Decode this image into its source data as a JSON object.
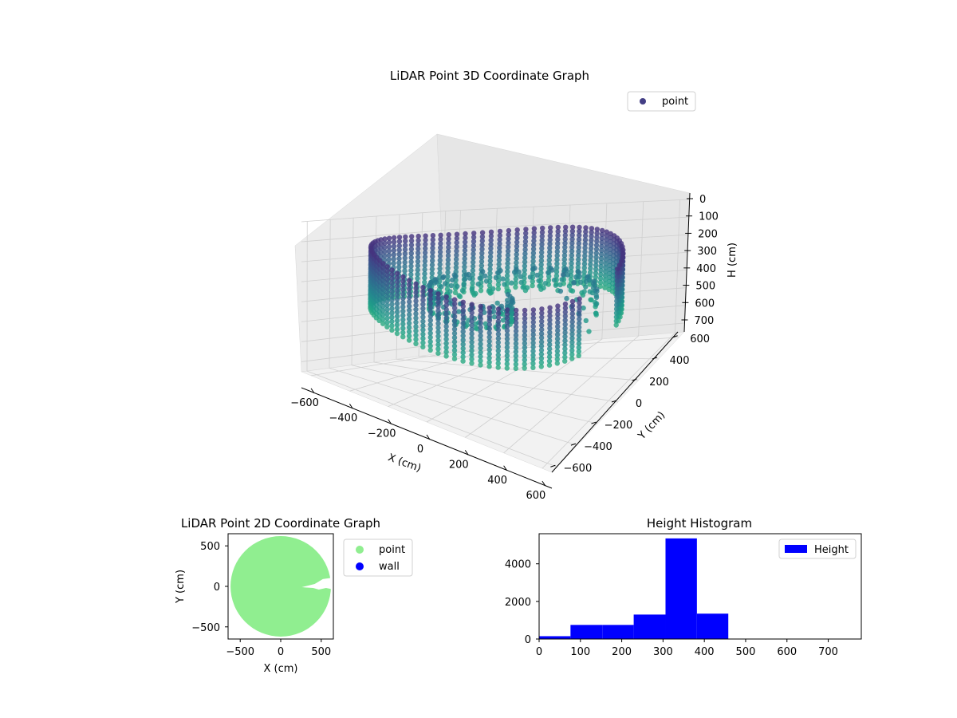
{
  "chart_data": [
    {
      "type": "scatter",
      "projection": "3d",
      "title": "LiDAR Point 3D Coordinate Graph",
      "xlabel": "X (cm)",
      "ylabel": "Y (cm)",
      "zlabel": "H (cm)",
      "xlim": [
        -650,
        650
      ],
      "ylim": [
        -650,
        650
      ],
      "zlim": [
        0,
        750
      ],
      "z_inverted": true,
      "xticks": [
        -600,
        -400,
        -200,
        0,
        200,
        400,
        600
      ],
      "yticks": [
        -600,
        -400,
        -200,
        0,
        200,
        400,
        600
      ],
      "zticks": [
        0,
        100,
        200,
        300,
        400,
        500,
        600,
        700
      ],
      "colormap": "viridis",
      "legend": {
        "placement": "top-right",
        "entries": [
          {
            "label": "point",
            "color": "#433e85"
          }
        ]
      },
      "series": [
        {
          "name": "point",
          "description_of_shape": "ring wall of radius ~580 cm spanning heights ~100-420 cm, opening toward +X",
          "wall_radius": 580,
          "wall_h_min": 100,
          "wall_h_max": 420,
          "inner_cluster": [
            [
              250,
              150,
              280
            ],
            [
              300,
              120,
              300
            ],
            [
              350,
              80,
              320
            ],
            [
              400,
              60,
              340
            ],
            [
              280,
              220,
              260
            ],
            [
              200,
              260,
              240
            ],
            [
              450,
              40,
              360
            ],
            [
              500,
              -20,
              380
            ],
            [
              320,
              180,
              330
            ],
            [
              380,
              140,
              350
            ]
          ]
        }
      ]
    },
    {
      "type": "scatter",
      "title": "LiDAR Point 2D Coordinate Graph",
      "xlabel": "X (cm)",
      "ylabel": "Y (cm)",
      "xlim": [
        -650,
        650
      ],
      "ylim": [
        -650,
        650
      ],
      "xticks": [
        -500,
        0,
        500
      ],
      "yticks": [
        -500,
        0,
        500
      ],
      "legend": {
        "placement": "outside-right",
        "entries": [
          {
            "label": "point",
            "color": "#90ee90"
          },
          {
            "label": "wall",
            "color": "#0000ff"
          }
        ]
      },
      "series": [
        {
          "name": "point",
          "color": "#90ee90",
          "shape": "filled disc of radius ~620 cm with a notch near (300..650, -20..80)"
        },
        {
          "name": "wall",
          "color": "#0000ff",
          "values": []
        }
      ]
    },
    {
      "type": "bar",
      "subtype": "histogram",
      "title": "Height Histogram",
      "xlim": [
        0,
        780
      ],
      "ylim": [
        0,
        5600
      ],
      "xticks": [
        0,
        100,
        200,
        300,
        400,
        500,
        600,
        700
      ],
      "yticks": [
        0,
        2000,
        4000
      ],
      "color": "#0000ff",
      "legend": {
        "placement": "top-right",
        "entries": [
          {
            "label": "Height",
            "color": "#0000ff"
          }
        ]
      },
      "bin_edges": [
        0,
        76,
        153,
        229,
        306,
        382,
        458,
        535,
        611,
        688,
        764
      ],
      "values": [
        150,
        750,
        750,
        1300,
        5350,
        1350,
        0,
        0,
        0,
        0
      ]
    }
  ]
}
